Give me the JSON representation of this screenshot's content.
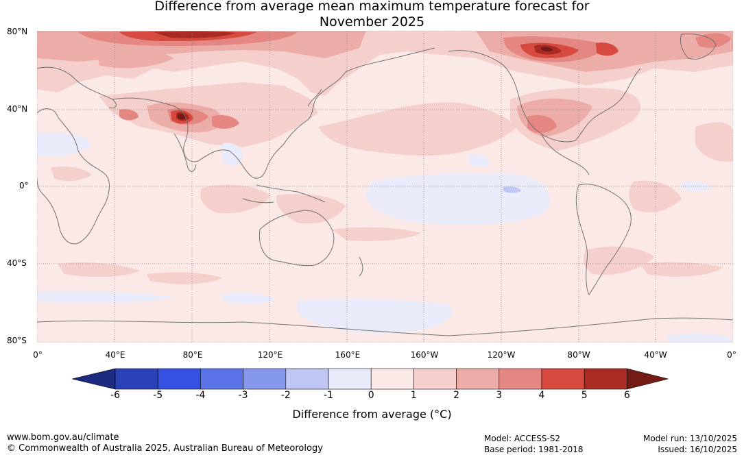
{
  "title": {
    "line1": "Difference from average mean maximum temperature forecast for",
    "line2": "November 2025"
  },
  "lat_labels": [
    "80°N",
    "40°N",
    "0°",
    "40°S",
    "80°S"
  ],
  "lon_labels": [
    "0°",
    "40°E",
    "80°E",
    "120°E",
    "160°E",
    "160°W",
    "120°W",
    "80°W",
    "40°W",
    "0°"
  ],
  "colorbar": {
    "ticks": [
      "-6",
      "-5",
      "-4",
      "-3",
      "-2",
      "-1",
      "0",
      "1",
      "2",
      "3",
      "4",
      "5",
      "6"
    ],
    "colors": [
      "#1c2a80",
      "#2a41b8",
      "#3451e3",
      "#5a74e8",
      "#8598ec",
      "#bfc6f3",
      "#e9ebfb",
      "#fbe9e8",
      "#f4cfcc",
      "#ecaca8",
      "#e48682",
      "#d74a3f",
      "#a92b23",
      "#741b15"
    ],
    "label": "Difference from average (°C)"
  },
  "footer": {
    "url": "www.bom.gov.au/climate",
    "copyright": "© Commonwealth of Australia 2025, Australian Bureau of Meteorology",
    "model": "Model: ACCESS-S2",
    "base_period": "Base period: 1981-2018",
    "model_run": "Model run: 13/10/2025",
    "issued": "Issued: 16/10/2025"
  }
}
